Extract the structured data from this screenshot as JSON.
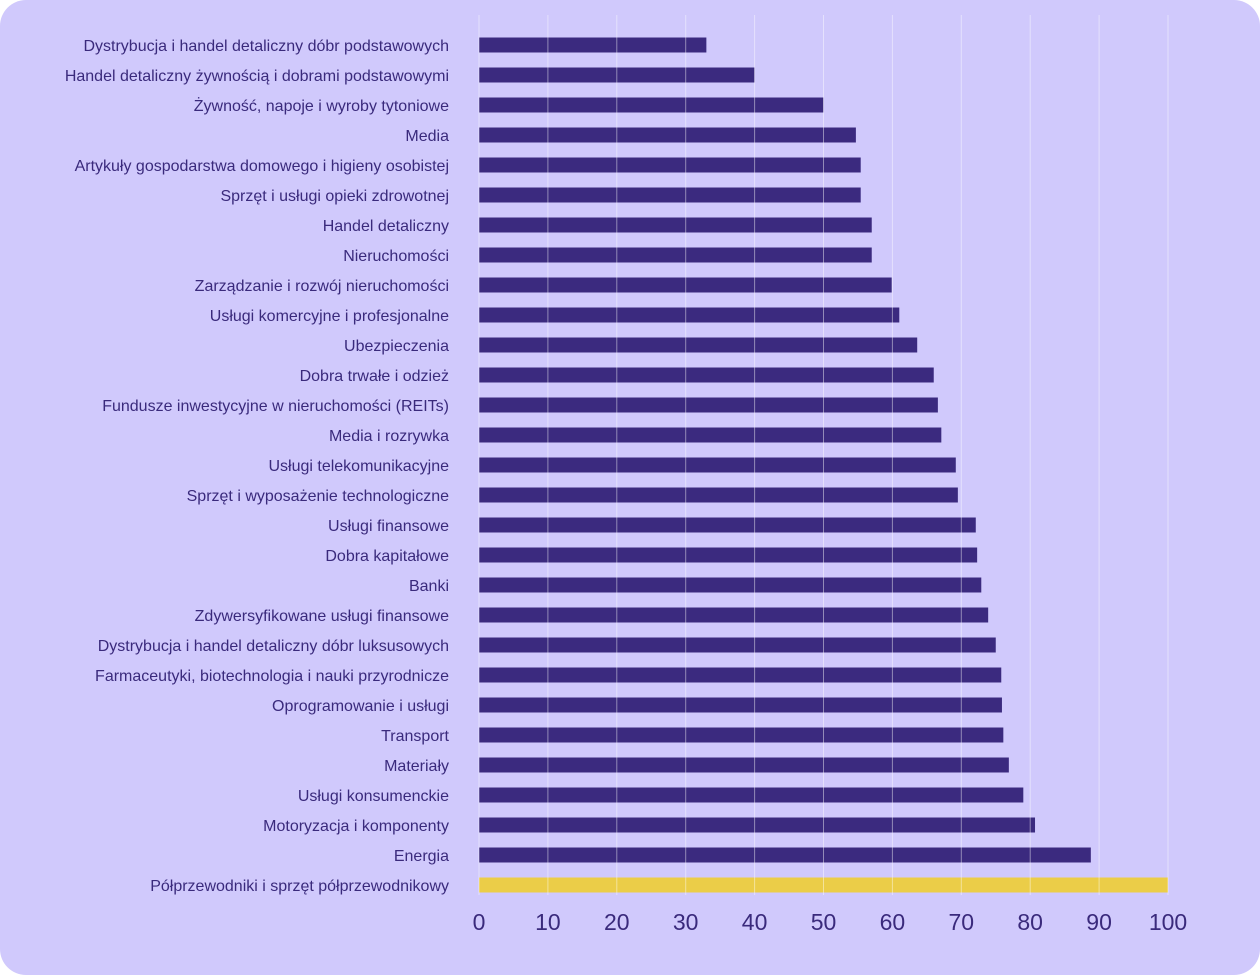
{
  "chart_data": {
    "type": "bar",
    "orientation": "horizontal",
    "title": "",
    "xlabel": "",
    "ylabel": "",
    "xlim": [
      0,
      100
    ],
    "xticks": [
      "0",
      "10",
      "20",
      "30",
      "40",
      "50",
      "60",
      "70",
      "80",
      "90",
      "100"
    ],
    "grid": true,
    "categories": [
      "Dystrybucja i handel detaliczny dóbr podstawowych",
      "Handel detaliczny żywnością i dobrami podstawowymi",
      "Żywność, napoje i wyroby tytoniowe",
      "Media",
      "Artykuły gospodarstwa domowego i higieny osobistej",
      "Sprzęt i usługi opieki zdrowotnej",
      "Handel detaliczny",
      "Nieruchomości",
      "Zarządzanie i rozwój nieruchomości",
      "Usługi komercyjne i profesjonalne",
      "Ubezpieczenia",
      "Dobra trwałe i odzież",
      "Fundusze inwestycyjne w nieruchomości (REITs)",
      "Media i rozrywka",
      "Usługi telekomunikacyjne",
      "Sprzęt i wyposażenie technologiczne",
      "Usługi finansowe",
      "Dobra kapitałowe",
      "Banki",
      "Zdywersyfikowane usługi finansowe",
      "Dystrybucja i handel detaliczny dóbr luksusowych",
      "Farmaceutyki, biotechnologia i nauki przyrodnicze",
      "Oprogramowanie i usługi",
      "Transport",
      "Materiały",
      "Usługi konsumenckie",
      "Motoryzacja i komponenty",
      "Energia",
      "Półprzewodniki i sprzęt półprzewodnikowy"
    ],
    "values": [
      33,
      40,
      50,
      54.7,
      55.4,
      55.4,
      57,
      57,
      59.9,
      61,
      63.6,
      66,
      66.6,
      67.1,
      69.2,
      69.5,
      72.1,
      72.3,
      72.9,
      73.9,
      75,
      75.8,
      75.9,
      76.1,
      76.9,
      79,
      80.7,
      88.8,
      100
    ],
    "highlight_index": 28,
    "colors": {
      "bar": "#3b2a7f",
      "highlight": "#ebcd48",
      "background": "#d0c9fc",
      "text": "#3a2a7c",
      "grid": "#ffffff"
    }
  }
}
